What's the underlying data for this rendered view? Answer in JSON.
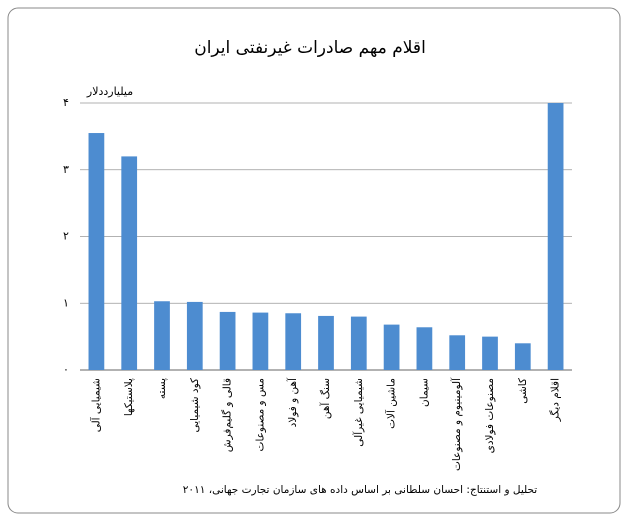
{
  "chart_data": {
    "type": "bar",
    "title": "اقلام مهم صادرات غیرنفتی ایران",
    "y_label": "میلیارددلار",
    "source": "تحلیل و استنتاج: احسان سلطانی بر اساس داده های سازمان تجارت جهانی، ۲۰۱۱",
    "categories": [
      "شیمیایی آلی",
      "پلاستیکها",
      "پسته",
      "کود شیمیایی",
      "قالی و گلیم‌فرش",
      "مس و مصنوعات",
      "آهن و فولاد",
      "سنگ آهن",
      "شیمیایی غیرآلی",
      "ماشین آلات",
      "سیمان",
      "آلومینیوم و مصنوعات",
      "مصنوعات فولادی",
      "کاشی",
      "اقلام دیگر"
    ],
    "values": [
      3.55,
      3.2,
      1.03,
      1.02,
      0.87,
      0.86,
      0.85,
      0.81,
      0.8,
      0.68,
      0.64,
      0.52,
      0.5,
      0.4,
      4.0
    ],
    "color": "#4d8cd0",
    "ylim": [
      0,
      4
    ],
    "yticks": [
      {
        "value": 0,
        "label": "۰"
      },
      {
        "value": 1,
        "label": "۱"
      },
      {
        "value": 2,
        "label": "۲"
      },
      {
        "value": 3,
        "label": "۳"
      },
      {
        "value": 4,
        "label": "۴"
      }
    ],
    "grid": true
  }
}
